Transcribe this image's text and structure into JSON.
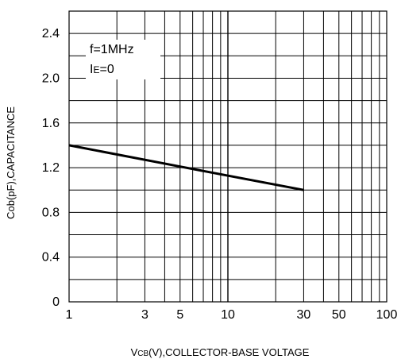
{
  "chart_data": {
    "type": "line",
    "xscale": "log",
    "xlim": [
      1,
      100
    ],
    "ylim": [
      0,
      2.6
    ],
    "grid": true,
    "xlabel": {
      "main": "V",
      "sub": "CB",
      "rest": "(V),COLLECTOR-BASE VOLTAGE"
    },
    "ylabel": "Cob(pF),CAPACITANCE",
    "x_ticks": [
      {
        "value": 1,
        "label": "1"
      },
      {
        "value": 3,
        "label": "3"
      },
      {
        "value": 5,
        "label": "5"
      },
      {
        "value": 10,
        "label": "10"
      },
      {
        "value": 30,
        "label": "30"
      },
      {
        "value": 50,
        "label": "50"
      },
      {
        "value": 100,
        "label": "100"
      }
    ],
    "y_ticks": [
      {
        "value": 0,
        "label": "0"
      },
      {
        "value": 0.4,
        "label": "0.4"
      },
      {
        "value": 0.8,
        "label": "0.8"
      },
      {
        "value": 1.2,
        "label": "1.2"
      },
      {
        "value": 1.6,
        "label": "1.6"
      },
      {
        "value": 2.0,
        "label": "2.0"
      },
      {
        "value": 2.4,
        "label": "2.4"
      }
    ],
    "y_gridlines": [
      0.2,
      0.4,
      0.6,
      0.8,
      1.0,
      1.2,
      1.4,
      1.6,
      1.8,
      2.0,
      2.2,
      2.4
    ],
    "x_gridlines": [
      2,
      3,
      4,
      5,
      6,
      7,
      8,
      9,
      10,
      20,
      30,
      40,
      50,
      60,
      70,
      80,
      90
    ],
    "annotations": [
      {
        "text": "f=1MHz"
      },
      {
        "main": "I",
        "sub": "E",
        "rest": "=0"
      }
    ],
    "series": [
      {
        "x": [
          1,
          5,
          30
        ],
        "y": [
          1.4,
          1.21,
          1.0
        ]
      }
    ]
  }
}
